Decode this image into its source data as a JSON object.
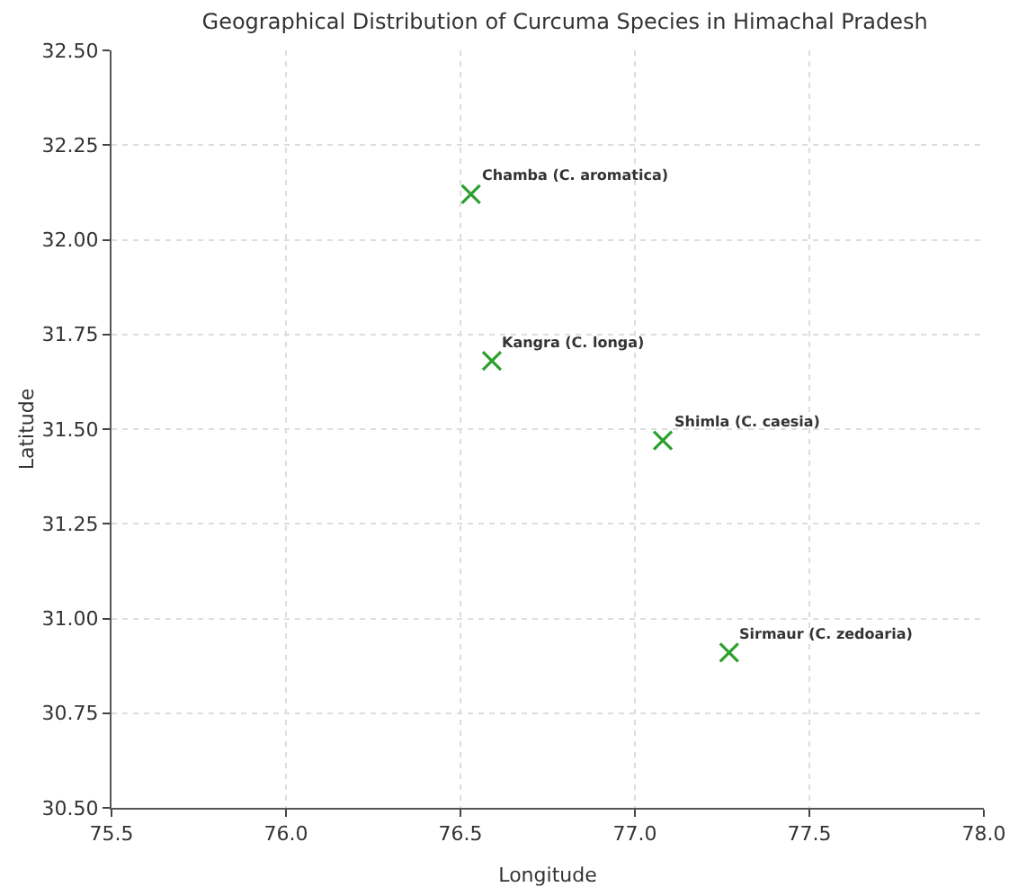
{
  "chart_data": {
    "type": "scatter",
    "title": "Geographical Distribution of Curcuma Species in Himachal Pradesh",
    "xlabel": "Longitude",
    "ylabel": "Latitude",
    "x": [
      76.53,
      76.59,
      77.08,
      77.27
    ],
    "series": [
      {
        "color": "#2ca02c",
        "values": [
          32.12,
          31.68,
          31.47,
          30.91
        ]
      }
    ],
    "marker": "cross",
    "grid": true,
    "xlim": [
      75.5,
      78.0
    ],
    "ylim": [
      30.5,
      32.5
    ],
    "xticks": [
      75.5,
      {
        "value": 76,
        "label": "76.0"
      },
      76.5,
      {
        "value": 77,
        "label": "77.0"
      },
      77.5,
      {
        "value": 78,
        "label": "78.0"
      }
    ],
    "yticks": [
      {
        "value": 30.5,
        "label": "30.50"
      },
      30.75,
      {
        "value": 31,
        "label": "31.00"
      },
      31.25,
      {
        "value": 31.5,
        "label": "31.50"
      },
      31.75,
      {
        "value": 32,
        "label": "32.00"
      },
      32.25,
      {
        "value": 32.5,
        "label": "32.50"
      }
    ],
    "annotations": [
      {
        "text": "Chamba (C. aromatica)",
        "x": 76.53,
        "y": 32.12
      },
      {
        "text": "Kangra (C. longa)",
        "x": 76.59,
        "y": 31.68
      },
      {
        "text": "Shimla (C. caesia)",
        "x": 77.08,
        "y": 31.47
      },
      {
        "text": "Sirmaur (C. zedoaria)",
        "x": 77.27,
        "y": 30.91
      }
    ]
  }
}
